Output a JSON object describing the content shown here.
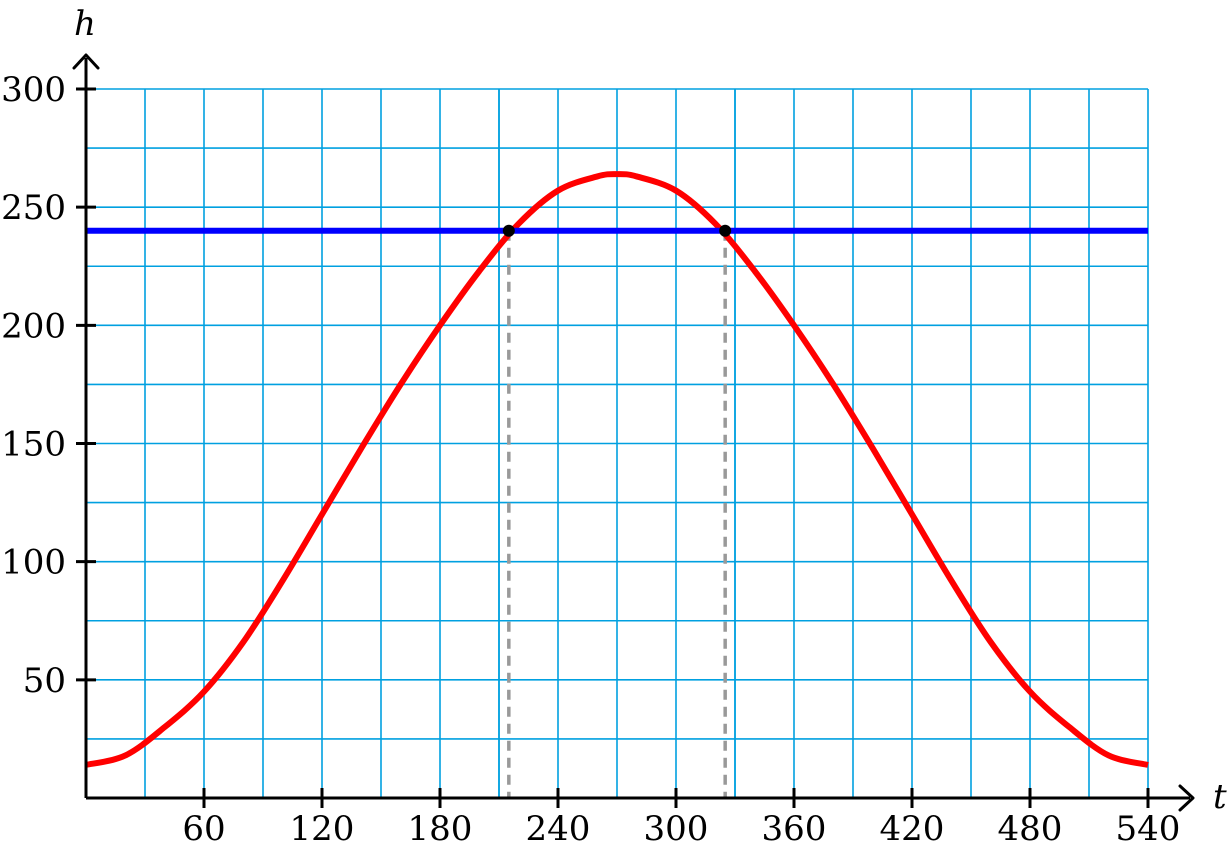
{
  "chart_data": {
    "type": "line",
    "xlabel": "t",
    "ylabel": "h",
    "xlim": [
      0,
      540
    ],
    "ylim": [
      0,
      300
    ],
    "grid": true,
    "x_major_ticks": [
      60,
      120,
      180,
      240,
      300,
      360,
      420,
      480,
      540
    ],
    "x_tick_labels": [
      "60",
      "120",
      "180",
      "240",
      "300",
      "360",
      "420",
      "480",
      "540"
    ],
    "y_major_ticks": [
      50,
      100,
      150,
      200,
      250,
      300
    ],
    "y_tick_labels": [
      "50",
      "100",
      "150",
      "200",
      "250",
      "300"
    ],
    "x_grid_step": 30,
    "y_grid_step": 25,
    "extra_vertical_gridlines": [
      210,
      330
    ],
    "series": [
      {
        "color": "#ff0000",
        "x": [
          0,
          20,
          40,
          60,
          80,
          100,
          120,
          140,
          160,
          180,
          200,
          220,
          240,
          260,
          270,
          280,
          300,
          320,
          340,
          360,
          380,
          400,
          420,
          440,
          460,
          480,
          500,
          520,
          540
        ],
        "y": [
          14,
          18,
          30,
          45,
          66,
          92,
          120,
          148,
          175,
          200,
          223,
          243,
          257,
          263,
          264,
          263,
          257,
          243,
          223,
          200,
          175,
          148,
          120,
          92,
          66,
          45,
          30,
          18,
          14
        ]
      },
      {
        "color": "#0000ff",
        "x": [
          0,
          540
        ],
        "y": [
          240,
          240
        ]
      }
    ],
    "intersection_points": [
      {
        "x": 215,
        "y": 240
      },
      {
        "x": 325,
        "y": 240
      }
    ],
    "colors": {
      "grid": "#00a0e0",
      "curve": "#ff0000",
      "level_line": "#0000ff",
      "dashed_guides": "#999999",
      "points": "#000000",
      "axes": "#000000"
    }
  }
}
